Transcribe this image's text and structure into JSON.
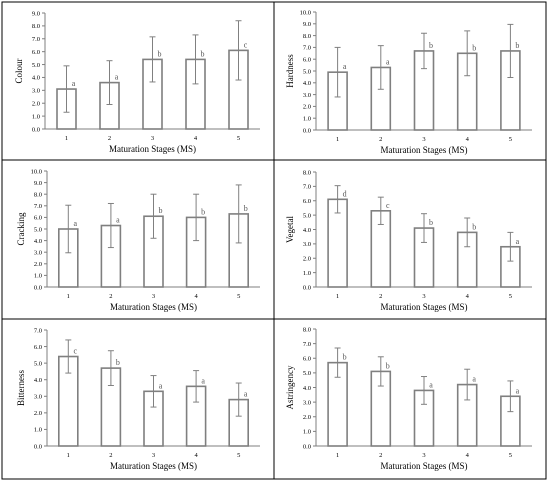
{
  "chart_data": [
    {
      "type": "bar",
      "ylabel": "Colour",
      "xlabel": "Maturation Stages (MS)",
      "categories": [
        "1",
        "2",
        "3",
        "4",
        "5"
      ],
      "values": [
        3.1,
        3.6,
        5.4,
        5.4,
        6.1
      ],
      "errors": [
        1.8,
        1.7,
        1.75,
        1.9,
        2.3
      ],
      "letters": [
        "a",
        "a",
        "b",
        "b",
        "c"
      ],
      "ylim": [
        0,
        9
      ],
      "yticks": [
        "0.0",
        "1.0",
        "2.0",
        "3.0",
        "4.0",
        "5.0",
        "6.0",
        "7.0",
        "8.0",
        "9.0"
      ]
    },
    {
      "type": "bar",
      "ylabel": "Hardness",
      "xlabel": "Maturation Stages (MS)",
      "categories": [
        "1",
        "2",
        "3",
        "4",
        "5"
      ],
      "values": [
        4.9,
        5.3,
        6.7,
        6.5,
        6.7
      ],
      "errors": [
        2.1,
        1.85,
        1.5,
        1.9,
        2.25
      ],
      "letters": [
        "a",
        "a",
        "b",
        "b",
        "b"
      ],
      "ylim": [
        0,
        10
      ],
      "yticks": [
        "0.0",
        "1.0",
        "2.0",
        "3.0",
        "4.0",
        "5.0",
        "6.0",
        "7.0",
        "8.0",
        "9.0",
        "10.0"
      ]
    },
    {
      "type": "bar",
      "ylabel": "Cracking",
      "xlabel": "Maturation Stages (MS)",
      "categories": [
        "1",
        "2",
        "3",
        "4",
        "5"
      ],
      "values": [
        5.0,
        5.3,
        6.1,
        6.0,
        6.3
      ],
      "errors": [
        2.05,
        1.9,
        1.9,
        2.0,
        2.5
      ],
      "letters": [
        "a",
        "a",
        "b",
        "b",
        "b"
      ],
      "ylim": [
        0,
        10
      ],
      "yticks": [
        "0.0",
        "1.0",
        "2.0",
        "3.0",
        "4.0",
        "5.0",
        "6.0",
        "7.0",
        "8.0",
        "9.0",
        "10.0"
      ]
    },
    {
      "type": "bar",
      "ylabel": "Vegetal",
      "xlabel": "Maturation Stages (MS)",
      "categories": [
        "1",
        "2",
        "3",
        "4",
        "5"
      ],
      "values": [
        6.1,
        5.3,
        4.1,
        3.8,
        2.8
      ],
      "errors": [
        0.95,
        0.95,
        1.0,
        1.0,
        1.0
      ],
      "letters": [
        "d",
        "c",
        "b",
        "b",
        "a"
      ],
      "ylim": [
        0,
        8
      ],
      "yticks": [
        "0.0",
        "1.0",
        "2.0",
        "3.0",
        "4.0",
        "5.0",
        "6.0",
        "7.0",
        "8.0"
      ]
    },
    {
      "type": "bar",
      "ylabel": "Bitterness",
      "xlabel": "Maturation Stages (MS)",
      "categories": [
        "1",
        "2",
        "3",
        "4",
        "5"
      ],
      "values": [
        5.4,
        4.7,
        3.3,
        3.6,
        2.8
      ],
      "errors": [
        1.0,
        1.05,
        0.95,
        0.95,
        1.0
      ],
      "letters": [
        "c",
        "b",
        "a",
        "a",
        "a"
      ],
      "ylim": [
        0,
        7
      ],
      "yticks": [
        "0.0",
        "1.0",
        "2.0",
        "3.0",
        "4.0",
        "5.0",
        "6.0",
        "7.0"
      ]
    },
    {
      "type": "bar",
      "ylabel": "Astringency",
      "xlabel": "Maturation Stages (MS)",
      "categories": [
        "1",
        "2",
        "3",
        "4",
        "5"
      ],
      "values": [
        5.7,
        5.1,
        3.8,
        4.2,
        3.4
      ],
      "errors": [
        1.0,
        1.0,
        0.95,
        1.05,
        1.05
      ],
      "letters": [
        "b",
        "b",
        "a",
        "a",
        "a"
      ],
      "ylim": [
        0,
        8
      ],
      "yticks": [
        "0.0",
        "1.0",
        "2.0",
        "3.0",
        "4.0",
        "5.0",
        "6.0",
        "7.0",
        "8.0"
      ]
    }
  ]
}
